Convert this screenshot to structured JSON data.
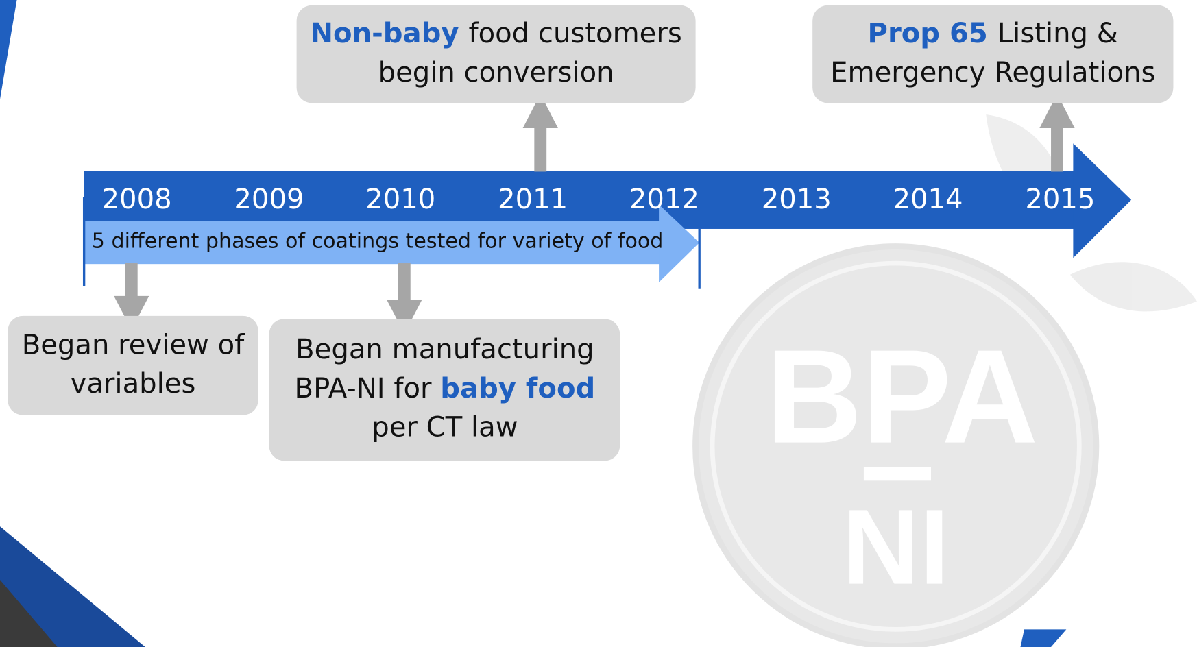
{
  "timeline": {
    "years": [
      "2008",
      "2009",
      "2010",
      "2011",
      "2012",
      "2013",
      "2014",
      "2015"
    ],
    "phase_label": "5 different phases of coatings tested for variety of food",
    "events": [
      {
        "lines": [
          [
            {
              "text": "Non-baby ",
              "highlight": true
            },
            {
              "text": "food customers"
            }
          ],
          [
            {
              "text": "begin conversion"
            }
          ]
        ]
      },
      {
        "lines": [
          [
            {
              "text": "Prop 65 ",
              "highlight": true
            },
            {
              "text": "Listing &"
            }
          ],
          [
            {
              "text": "Emergency Regulations"
            }
          ]
        ]
      },
      {
        "lines": [
          [
            {
              "text": "Began review of"
            }
          ],
          [
            {
              "text": "variables"
            }
          ]
        ]
      },
      {
        "lines": [
          [
            {
              "text": "Began manufacturing"
            }
          ],
          [
            {
              "text": "BPA-NI for "
            },
            {
              "text": "baby food",
              "highlight": true
            }
          ],
          [
            {
              "text": "per CT law"
            }
          ]
        ]
      }
    ]
  },
  "logo": {
    "top": "BPA",
    "bottom": "NI"
  }
}
